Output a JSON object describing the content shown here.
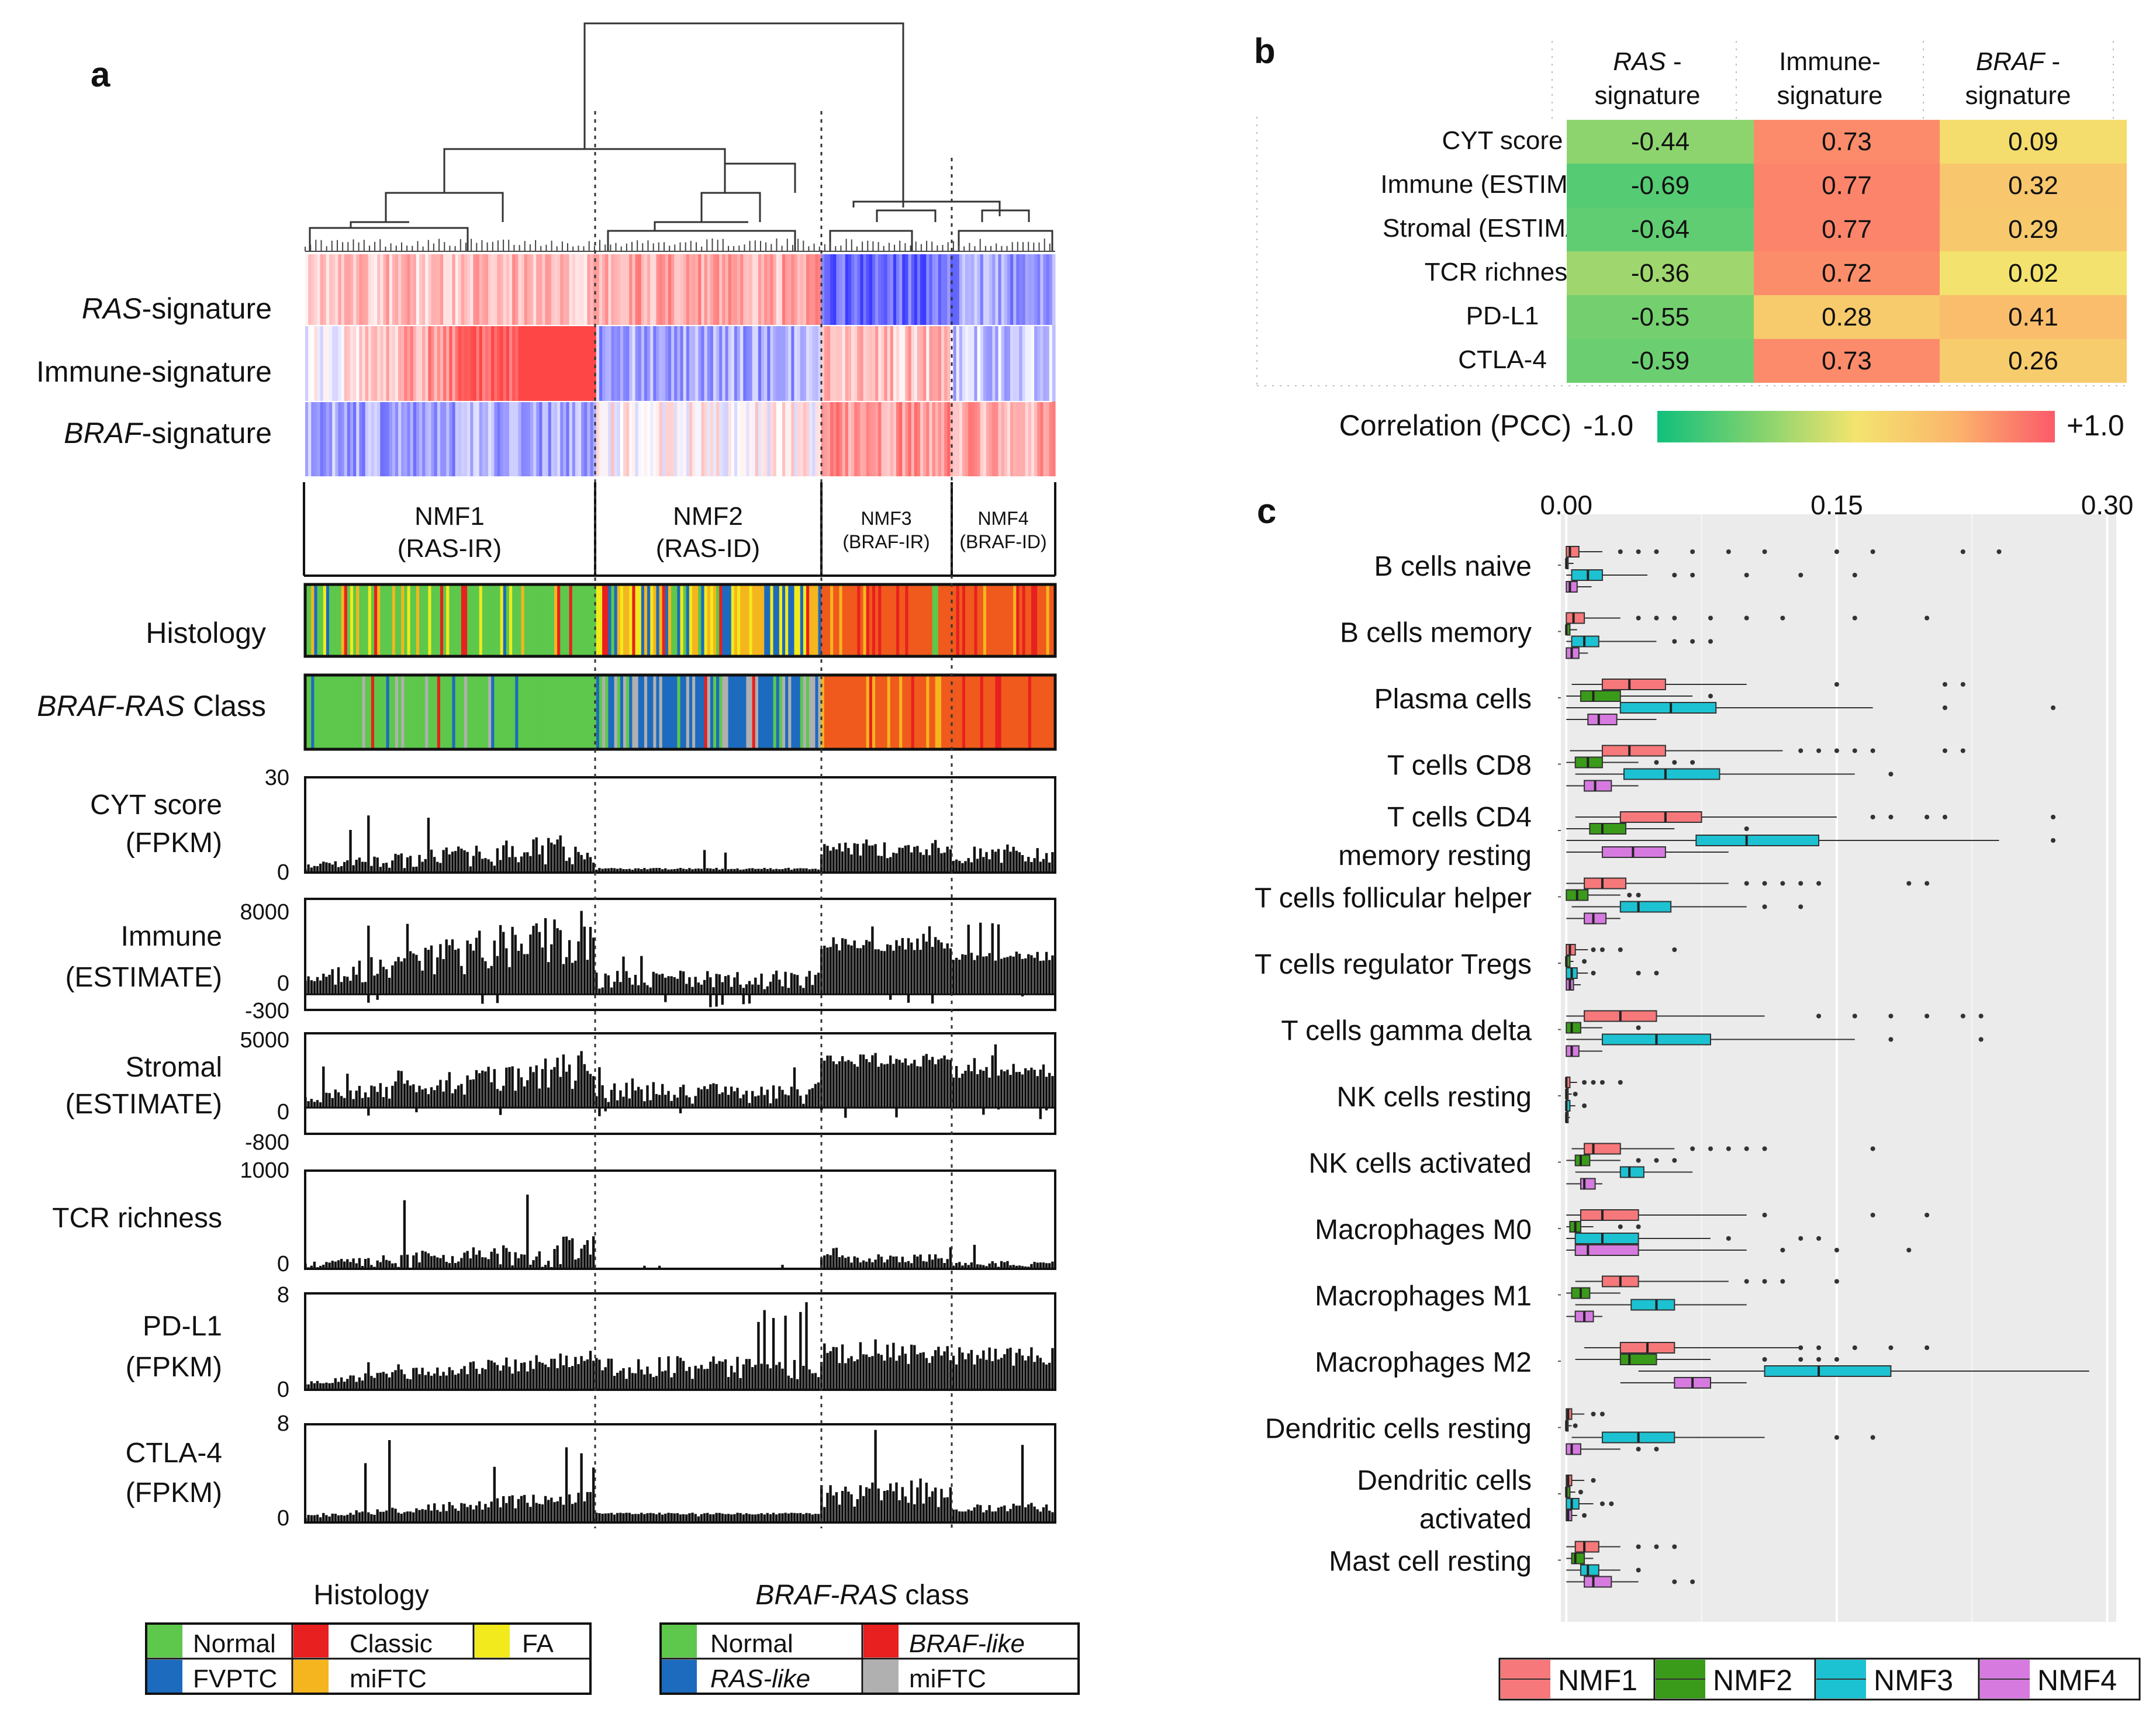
{
  "panel_a": {
    "label": "a",
    "row_labels": {
      "ras_italic": "RAS",
      "ras_rest": "-signature",
      "immune": "Immune-signature",
      "braf_italic": "BRAF",
      "braf_rest": "-signature",
      "histology": "Histology",
      "class_italic": "BRAF-RAS",
      "class_rest": " Class"
    },
    "clusters": [
      {
        "name": "NMF1",
        "sub": "(RAS-IR)"
      },
      {
        "name": "NMF2",
        "sub": "(RAS-ID)"
      },
      {
        "name": "NMF3",
        "sub": "(BRAF-IR)"
      },
      {
        "name": "NMF4",
        "sub": "(BRAF-ID)"
      }
    ],
    "tracks": [
      {
        "line1": "CYT score",
        "line2": "(FPKM)",
        "ymax": "30",
        "ymin": "0"
      },
      {
        "line1": "Immune",
        "line2": "(ESTIMATE)",
        "ymax": "8000",
        "ymid": "0",
        "ymin": "-300"
      },
      {
        "line1": "Stromal",
        "line2": "(ESTIMATE)",
        "ymax": "5000",
        "ymid": "0",
        "ymin": "-800"
      },
      {
        "line1": "TCR richness",
        "line2": "",
        "ymax": "1000",
        "ymin": "0"
      },
      {
        "line1": "PD-L1",
        "line2": "(FPKM)",
        "ymax": "8",
        "ymin": "0"
      },
      {
        "line1": "CTLA-4",
        "line2": "(FPKM)",
        "ymax": "8",
        "ymin": "0"
      }
    ],
    "legend_histology": {
      "title": "Histology",
      "items": [
        {
          "label": "Normal",
          "color": "#5dc84b"
        },
        {
          "label": "Classic",
          "color": "#e8201f"
        },
        {
          "label": "FA",
          "color": "#f2ea1c"
        },
        {
          "label": "FVPTC",
          "color": "#1c6bbf"
        },
        {
          "label": "miFTC",
          "color": "#f5b51e"
        }
      ]
    },
    "legend_class": {
      "title_italic": "BRAF-RAS",
      "title_rest": " class",
      "items": [
        {
          "label": "Normal",
          "color": "#5dc84b"
        },
        {
          "label": "BRAF-like",
          "color": "#e8201f"
        },
        {
          "label": "RAS-like",
          "color": "#1c6bbf"
        },
        {
          "label": "miFTC",
          "color": "#b0b0b0"
        }
      ]
    }
  },
  "panel_b": {
    "label": "b",
    "columns": [
      {
        "line1_italic": "RAS",
        "line1_rest": " -",
        "line2": "signature"
      },
      {
        "line1_italic": "",
        "line1_rest": "Immune-",
        "line2": "signature"
      },
      {
        "line1_italic": "BRAF",
        "line1_rest": " -",
        "line2": "signature"
      }
    ],
    "rows": [
      "CYT score",
      "Immune (ESTIMATE)",
      "Stromal (ESTIMATE)",
      "TCR richness",
      "PD-L1",
      "CTLA-4"
    ],
    "values": [
      [
        "-0.44",
        "0.73",
        "0.09"
      ],
      [
        "-0.69",
        "0.77",
        "0.32"
      ],
      [
        "-0.64",
        "0.77",
        "0.29"
      ],
      [
        "-0.36",
        "0.72",
        "0.02"
      ],
      [
        "-0.55",
        "0.28",
        "0.41"
      ],
      [
        "-0.59",
        "0.73",
        "0.26"
      ]
    ],
    "colorbar": {
      "label": "Correlation (PCC)",
      "min": "-1.0",
      "max": "+1.0"
    }
  },
  "panel_c": {
    "label": "c"
  },
  "chart_data": {
    "type": "box",
    "title": "",
    "axis_ticks": [
      "0.00",
      "0.15",
      "0.30"
    ],
    "xlim": [
      -0.003,
      0.305
    ],
    "categories": [
      "B cells naive",
      "B cells memory",
      "Plasma cells",
      "T cells CD8",
      "T cells CD4\nmemory resting",
      "T cells follicular helper",
      "T cells regulator Tregs",
      "T cells gamma delta",
      "NK cells resting",
      "NK cells activated",
      "Macrophages M0",
      "Macrophages M1",
      "Macrophages M2",
      "Dendritic cells resting",
      "Dendritic cells\nactivated",
      "Mast cell resting"
    ],
    "series_names": [
      "NMF1",
      "NMF2",
      "NMF3",
      "NMF4"
    ],
    "series_colors": [
      "#f7787a",
      "#3a9b1a",
      "#1cc2d2",
      "#d67ae0"
    ],
    "boxes": [
      [
        [
          0,
          0,
          0.002,
          0.007,
          0.02,
          [
            0.03,
            0.04,
            0.05,
            0.07,
            0.09,
            0.11,
            0.15,
            0.17,
            0.22,
            0.24
          ]
        ],
        [
          0,
          0,
          0,
          0.001,
          0.004,
          []
        ],
        [
          0,
          0.003,
          0.012,
          0.02,
          0.045,
          [
            0.06,
            0.07,
            0.1,
            0.13,
            0.16
          ]
        ],
        [
          0,
          0,
          0.002,
          0.006,
          0.014,
          []
        ]
      ],
      [
        [
          0,
          0,
          0.004,
          0.01,
          0.03,
          [
            0.04,
            0.05,
            0.06,
            0.08,
            0.1,
            0.12,
            0.16,
            0.2
          ]
        ],
        [
          0,
          0,
          0,
          0.002,
          0.006,
          []
        ],
        [
          0,
          0.003,
          0.01,
          0.018,
          0.05,
          [
            0.06,
            0.07,
            0.08
          ]
        ],
        [
          0,
          0,
          0.003,
          0.007,
          0.012,
          []
        ]
      ],
      [
        [
          0.003,
          0.02,
          0.035,
          0.055,
          0.1,
          [
            0.15,
            0.21,
            0.22
          ]
        ],
        [
          0,
          0.008,
          0.015,
          0.03,
          0.07,
          [
            0.08
          ]
        ],
        [
          0,
          0.03,
          0.058,
          0.083,
          0.17,
          [
            0.21,
            0.27
          ]
        ],
        [
          0,
          0.012,
          0.018,
          0.028,
          0.05,
          []
        ]
      ],
      [
        [
          0.002,
          0.02,
          0.035,
          0.055,
          0.12,
          [
            0.13,
            0.14,
            0.15,
            0.16,
            0.17,
            0.21,
            0.22
          ]
        ],
        [
          0,
          0.005,
          0.012,
          0.02,
          0.04,
          [
            0.05,
            0.06,
            0.07
          ]
        ],
        [
          0.005,
          0.032,
          0.055,
          0.085,
          0.16,
          [
            0.18
          ]
        ],
        [
          0,
          0.01,
          0.016,
          0.025,
          0.04,
          []
        ]
      ],
      [
        [
          0.005,
          0.03,
          0.055,
          0.075,
          0.15,
          [
            0.17,
            0.18,
            0.2,
            0.21,
            0.27
          ]
        ],
        [
          0,
          0.013,
          0.02,
          0.033,
          0.06,
          [
            0.1
          ]
        ],
        [
          0,
          0.072,
          0.1,
          0.14,
          0.24,
          [
            0.27
          ]
        ],
        [
          0,
          0.02,
          0.037,
          0.055,
          0.09,
          []
        ]
      ],
      [
        [
          0,
          0.01,
          0.02,
          0.033,
          0.09,
          [
            0.1,
            0.11,
            0.12,
            0.13,
            0.14,
            0.19,
            0.2
          ]
        ],
        [
          0,
          0,
          0.006,
          0.012,
          0.03,
          [
            0.035,
            0.04
          ]
        ],
        [
          0.003,
          0.03,
          0.04,
          0.058,
          0.1,
          [
            0.11,
            0.13
          ]
        ],
        [
          0,
          0.01,
          0.015,
          0.022,
          0.03,
          []
        ]
      ],
      [
        [
          0,
          0,
          0.002,
          0.005,
          0.012,
          [
            0.015,
            0.02,
            0.03,
            0.06
          ]
        ],
        [
          0,
          0,
          0,
          0.002,
          0.004,
          [
            0.01
          ]
        ],
        [
          0,
          0,
          0.003,
          0.006,
          0.012,
          [
            0.015,
            0.04,
            0.05
          ]
        ],
        [
          0,
          0,
          0.002,
          0.004,
          0.008,
          []
        ]
      ],
      [
        [
          0,
          0.01,
          0.03,
          0.05,
          0.11,
          [
            0.14,
            0.16,
            0.18,
            0.2,
            0.22,
            0.23
          ]
        ],
        [
          0,
          0,
          0.003,
          0.008,
          0.02,
          [
            0.04
          ]
        ],
        [
          0,
          0.02,
          0.05,
          0.08,
          0.16,
          [
            0.18,
            0.23
          ]
        ],
        [
          0,
          0,
          0.003,
          0.007,
          0.02,
          []
        ]
      ],
      [
        [
          0,
          0,
          0,
          0.002,
          0.006,
          [
            0.01,
            0.015,
            0.02,
            0.03
          ]
        ],
        [
          0,
          0,
          0,
          0.001,
          0.003,
          [
            0.005
          ]
        ],
        [
          0,
          0,
          0,
          0.002,
          0.005,
          [
            0.01
          ]
        ],
        [
          0,
          0,
          0,
          0.001,
          0.002,
          []
        ]
      ],
      [
        [
          0.003,
          0.01,
          0.015,
          0.03,
          0.06,
          [
            0.07,
            0.08,
            0.09,
            0.1,
            0.11,
            0.17
          ]
        ],
        [
          0,
          0.005,
          0.008,
          0.013,
          0.03,
          [
            0.04,
            0.05,
            0.06
          ]
        ],
        [
          0.005,
          0.03,
          0.035,
          0.043,
          0.07,
          []
        ],
        [
          0,
          0.008,
          0.01,
          0.016,
          0.02,
          []
        ]
      ],
      [
        [
          0,
          0.008,
          0.02,
          0.04,
          0.1,
          [
            0.11,
            0.17,
            0.2
          ]
        ],
        [
          0,
          0.002,
          0.005,
          0.008,
          0.015,
          [
            0.03,
            0.04
          ]
        ],
        [
          0,
          0.005,
          0.02,
          0.04,
          0.08,
          [
            0.09,
            0.13,
            0.14
          ]
        ],
        [
          0,
          0.005,
          0.012,
          0.04,
          0.1,
          [
            0.12,
            0.15,
            0.19
          ]
        ]
      ],
      [
        [
          0.005,
          0.02,
          0.03,
          0.04,
          0.09,
          [
            0.1,
            0.11,
            0.12,
            0.15
          ]
        ],
        [
          0,
          0.003,
          0.008,
          0.013,
          0.03,
          []
        ],
        [
          0.005,
          0.036,
          0.05,
          0.06,
          0.1,
          []
        ],
        [
          0,
          0.005,
          0.01,
          0.015,
          0.02,
          []
        ]
      ],
      [
        [
          0.01,
          0.03,
          0.045,
          0.06,
          0.13,
          [
            0.13,
            0.14,
            0.16,
            0.18,
            0.2
          ]
        ],
        [
          0.005,
          0.03,
          0.035,
          0.05,
          0.08,
          [
            0.11,
            0.13,
            0.14,
            0.15
          ]
        ],
        [
          0.04,
          0.11,
          0.14,
          0.18,
          0.29,
          []
        ],
        [
          0.03,
          0.06,
          0.07,
          0.08,
          0.1,
          []
        ]
      ],
      [
        [
          0,
          0,
          0.001,
          0.003,
          0.01,
          [
            0.015,
            0.02
          ]
        ],
        [
          0,
          0,
          0,
          0.001,
          0.003,
          [
            0.005
          ]
        ],
        [
          0.003,
          0.02,
          0.04,
          0.06,
          0.11,
          [
            0.15,
            0.17
          ]
        ],
        [
          0,
          0,
          0.003,
          0.008,
          0.03,
          [
            0.04,
            0.05
          ]
        ]
      ],
      [
        [
          0,
          0,
          0.001,
          0.003,
          0.01,
          [
            0.015
          ]
        ],
        [
          0,
          0,
          0,
          0.002,
          0.005,
          [
            0.008
          ]
        ],
        [
          0,
          0,
          0.003,
          0.007,
          0.015,
          [
            0.02,
            0.025
          ]
        ],
        [
          0,
          0,
          0.001,
          0.003,
          0.006,
          [
            0.01
          ]
        ]
      ],
      [
        [
          0,
          0.005,
          0.01,
          0.018,
          0.03,
          [
            0.04,
            0.05,
            0.06
          ]
        ],
        [
          0,
          0.003,
          0.005,
          0.01,
          0.015,
          []
        ],
        [
          0,
          0.008,
          0.012,
          0.018,
          0.03,
          [
            0.04
          ]
        ],
        [
          0,
          0.01,
          0.015,
          0.025,
          0.04,
          [
            0.06,
            0.07
          ]
        ]
      ]
    ],
    "legend": [
      "NMF1",
      "NMF2",
      "NMF3",
      "NMF4"
    ]
  }
}
